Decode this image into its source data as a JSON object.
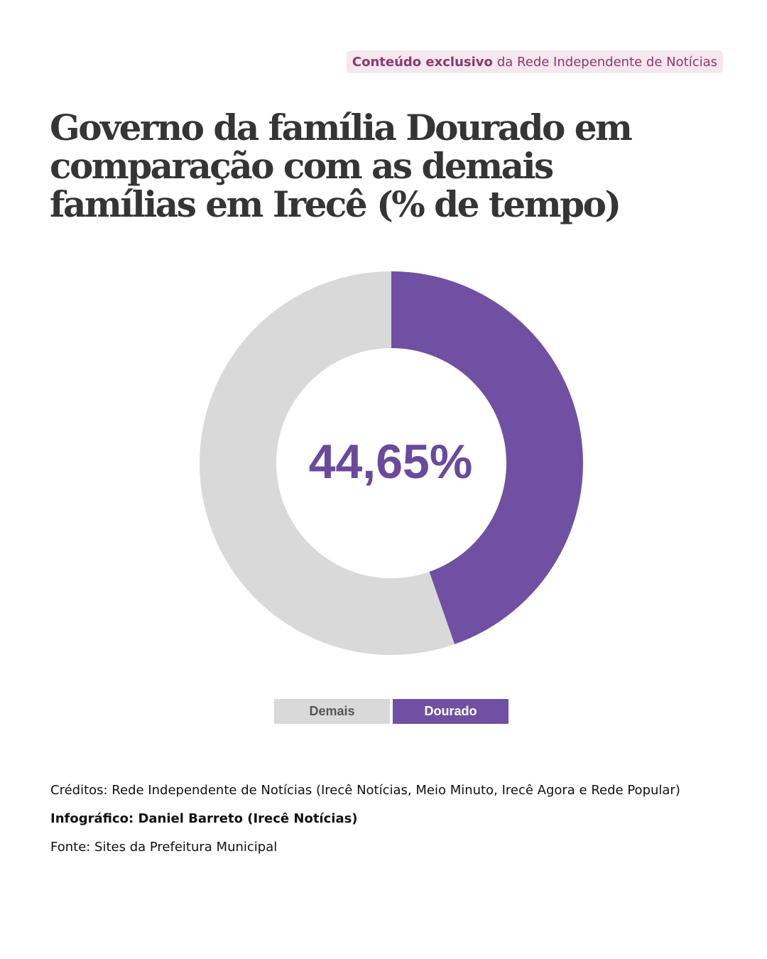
{
  "tag": {
    "strong": "Conteúdo exclusivo",
    "rest": "da Rede Independente de Notícias"
  },
  "title": "Governo da família Dourado em comparação com as demais famílias em Irecê (% de tempo)",
  "chart_data": {
    "type": "pie",
    "style": "donut",
    "title": "Governo da família Dourado em comparação com as demais famílias em Irecê (% de tempo)",
    "center_label": "44,65%",
    "legend_position": "bottom-center",
    "slices": [
      {
        "name": "Dourado",
        "value": 44.65,
        "color": "#7050a2"
      },
      {
        "name": "Demais",
        "value": 55.35,
        "color": "#d9d9d9"
      }
    ]
  },
  "legend": {
    "items": [
      {
        "label": "Demais",
        "color": "#d9d9d9"
      },
      {
        "label": "Dourado",
        "color": "#7050a2"
      }
    ]
  },
  "credits": {
    "line1": "Créditos: Rede Independente de Notícias (Irecê Notícias, Meio Minuto, Irecê Agora e Rede Popular)",
    "line2": "Infográfico: Daniel Barreto (Irecê Notícias)",
    "line3": "Fonte: Sites da Prefeitura Municipal"
  }
}
